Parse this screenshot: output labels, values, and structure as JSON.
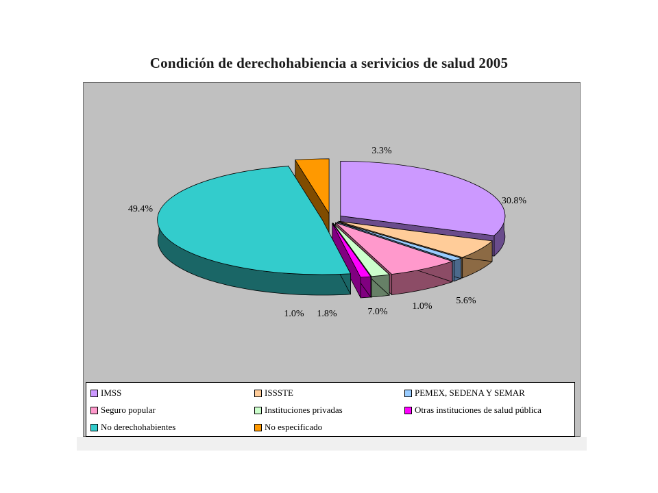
{
  "chart_data": {
    "type": "pie",
    "title": "Condición de derechohabiencia a serivicios de salud 2005",
    "slices": [
      {
        "name": "IMSS",
        "value": 30.8,
        "label": "30.8%",
        "color": "#cc99ff",
        "dark": "#6a4c8c"
      },
      {
        "name": "ISSSTE",
        "value": 5.6,
        "label": "5.6%",
        "color": "#ffcc99",
        "dark": "#8c6a44"
      },
      {
        "name": "PEMEX, SEDENA Y SEMAR",
        "value": 1.0,
        "label": "1.0%",
        "color": "#99ccff",
        "dark": "#4c6a8c"
      },
      {
        "name": "Seguro popular",
        "value": 7.0,
        "label": "7.0%",
        "color": "#ff99cc",
        "dark": "#8c4c66"
      },
      {
        "name": "Instituciones privadas",
        "value": 1.8,
        "label": "1.8%",
        "color": "#ccffcc",
        "dark": "#668066"
      },
      {
        "name": "Otras instituciones de salud pública",
        "value": 1.0,
        "label": "1.0%",
        "color": "#ff00ff",
        "dark": "#800080"
      },
      {
        "name": "No derechohabientes",
        "value": 49.4,
        "label": "49.4%",
        "color": "#33cccc",
        "dark": "#1a6666"
      },
      {
        "name": "No especificado",
        "value": 3.3,
        "label": "3.3%",
        "color": "#ff9900",
        "dark": "#804c00"
      }
    ],
    "legend_position": "bottom"
  }
}
